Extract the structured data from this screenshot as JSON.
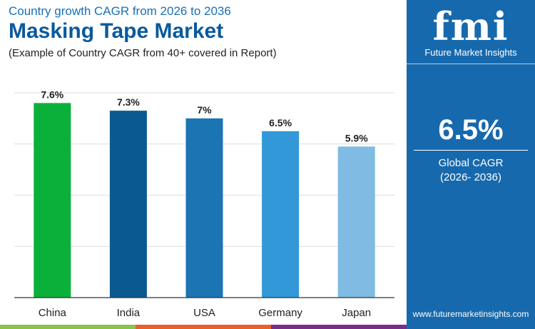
{
  "header": {
    "subtitle": "Country growth CAGR from 2026 to 2036",
    "title": "Masking Tape Market",
    "note": "(Example of Country CAGR from 40+ covered in Report)"
  },
  "panel": {
    "logo_text": "fmi",
    "brand": "Future Market Insights",
    "value": "6.5%",
    "label": "Global CAGR",
    "period": "(2026- 2036)",
    "url": "www.futuremarketinsights.com",
    "bg_color": "#1769ad"
  },
  "chart_data": {
    "type": "bar",
    "categories": [
      "China",
      "India",
      "USA",
      "Germany",
      "Japan"
    ],
    "values": [
      7.6,
      7.3,
      7,
      6.5,
      5.9
    ],
    "labels": [
      "7.6%",
      "7.3%",
      "7%",
      "6.5%",
      "5.9%"
    ],
    "colors": [
      "#0bb03a",
      "#0a5a8f",
      "#1a75b2",
      "#3298d8",
      "#7fbbe3"
    ],
    "ylim": [
      0,
      8
    ],
    "grid": true,
    "xlabel": "",
    "ylabel": ""
  }
}
